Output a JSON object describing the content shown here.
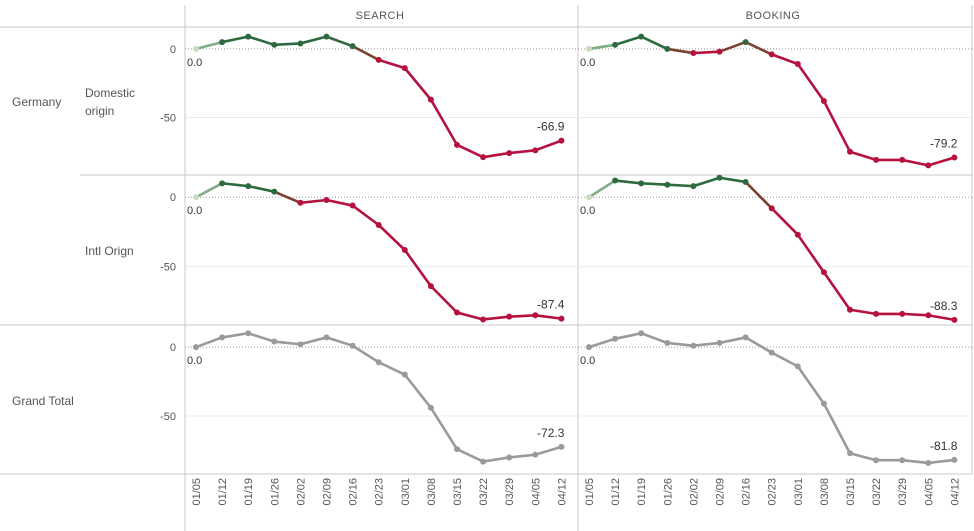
{
  "columns": [
    "SEARCH",
    "BOOKING"
  ],
  "rows": [
    {
      "group": "Germany",
      "label": "Domestic origin"
    },
    {
      "group": "",
      "label": "Intl Orign"
    },
    {
      "group": "Grand Total",
      "label": ""
    }
  ],
  "colors": {
    "positive": "#2d6b3f",
    "negative": "#b5123f",
    "transition": "#7a4030",
    "start_point": "#c9dcc0",
    "total": "#9a9a9a",
    "grid": "#ececec",
    "border": "#c8c8c8",
    "zero_line": "#999999"
  },
  "chart_data": {
    "type": "line",
    "x": [
      "01/05",
      "01/12",
      "01/19",
      "01/26",
      "02/02",
      "02/09",
      "02/16",
      "02/23",
      "03/01",
      "03/08",
      "03/15",
      "03/22",
      "03/29",
      "04/05",
      "04/12"
    ],
    "y_ticks": [
      0,
      -50
    ],
    "ylim": [
      -92,
      16
    ],
    "panels": [
      {
        "row": 0,
        "col": 0,
        "start_label": "0.0",
        "end_label": "-66.9",
        "values": [
          0,
          5,
          9,
          3,
          4,
          9,
          2,
          -8,
          -14,
          -37,
          -70,
          -79,
          -76,
          -74,
          -66.9
        ]
      },
      {
        "row": 0,
        "col": 1,
        "start_label": "0.0",
        "end_label": "-79.2",
        "values": [
          0,
          3,
          9,
          0,
          -3,
          -2,
          5,
          -4,
          -11,
          -38,
          -75,
          -81,
          -81,
          -85,
          -79.2
        ]
      },
      {
        "row": 1,
        "col": 0,
        "start_label": "0.0",
        "end_label": "-87.4",
        "values": [
          0,
          10,
          8,
          4,
          -4,
          -2,
          -6,
          -20,
          -38,
          -64,
          -83,
          -88,
          -86,
          -85,
          -87.4
        ]
      },
      {
        "row": 1,
        "col": 1,
        "start_label": "0.0",
        "end_label": "-88.3",
        "values": [
          0,
          12,
          10,
          9,
          8,
          14,
          11,
          -8,
          -27,
          -54,
          -81,
          -84,
          -84,
          -85,
          -88.3
        ]
      },
      {
        "row": 2,
        "col": 0,
        "start_label": "0.0",
        "end_label": "-72.3",
        "values": [
          0,
          7,
          10,
          4,
          2,
          7,
          1,
          -11,
          -20,
          -44,
          -74,
          -83,
          -80,
          -78,
          -72.3
        ]
      },
      {
        "row": 2,
        "col": 1,
        "start_label": "0.0",
        "end_label": "-81.8",
        "values": [
          0,
          6,
          10,
          3,
          1,
          3,
          7,
          -4,
          -14,
          -41,
          -77,
          -82,
          -82,
          -84,
          -81.8
        ]
      }
    ]
  }
}
